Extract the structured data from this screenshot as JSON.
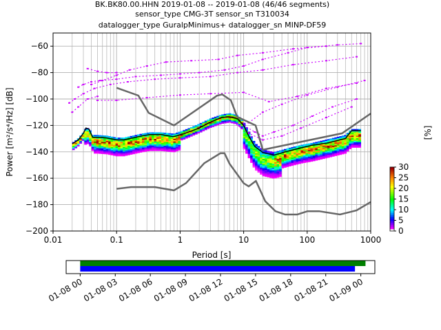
{
  "title_lines": [
    "BK.BK80.00.HHN   2019-01-08 -- 2019-01-08  (46/46 segments)",
    "sensor_type CMG-3T sensor_sn T310034",
    "datalogger_type GuralpMinimus+ datalogger_sn MINP-DF59"
  ],
  "chart_data": [
    {
      "type": "heatmap",
      "xlabel": "Period [s]",
      "ylabel": "Power [m²/s⁴/Hz] [dB]",
      "x_scale": "log",
      "xlim": [
        0.01,
        1000
      ],
      "ylim": [
        -200,
        -50
      ],
      "x_ticks": [
        0.01,
        0.1,
        1,
        10,
        100,
        1000
      ],
      "x_tick_labels": [
        "0.01",
        "0.1",
        "1",
        "10",
        "100",
        "1000"
      ],
      "y_ticks": [
        -200,
        -180,
        -160,
        -140,
        -120,
        -100,
        -80,
        -60
      ],
      "y_tick_labels": [
        "−200",
        "−180",
        "−160",
        "−140",
        "−120",
        "−100",
        "−80",
        "−60"
      ],
      "grid": true,
      "colorbar": {
        "label": "[%]",
        "range": [
          0,
          30
        ],
        "ticks": [
          0,
          5,
          10,
          15,
          20,
          25,
          30
        ],
        "tick_labels": [
          "0",
          "5",
          "10",
          "15",
          "20",
          "25",
          "30"
        ]
      },
      "noise_models": {
        "high": [
          [
            0.1,
            -91.5
          ],
          [
            0.22,
            -97.4
          ],
          [
            0.32,
            -110.5
          ],
          [
            0.8,
            -120
          ],
          [
            3.8,
            -97.5
          ],
          [
            4.6,
            -96.5
          ],
          [
            6.3,
            -101
          ],
          [
            7.9,
            -113.5
          ],
          [
            15.4,
            -120
          ],
          [
            20,
            -138.5
          ],
          [
            354.8,
            -126
          ],
          [
            1000,
            -111
          ]
        ],
        "low": [
          [
            0.1,
            -168
          ],
          [
            0.17,
            -166.7
          ],
          [
            0.4,
            -166.7
          ],
          [
            0.8,
            -169.2
          ],
          [
            1.24,
            -163.7
          ],
          [
            2.4,
            -148.6
          ],
          [
            4.3,
            -141.1
          ],
          [
            5,
            -141.1
          ],
          [
            6,
            -149
          ],
          [
            10,
            -163.8
          ],
          [
            12,
            -166.2
          ],
          [
            15.6,
            -162.1
          ],
          [
            21.9,
            -177.5
          ],
          [
            31.6,
            -185
          ],
          [
            45,
            -187.5
          ],
          [
            70,
            -187.5
          ],
          [
            101,
            -185
          ],
          [
            154,
            -185
          ],
          [
            328,
            -187.5
          ],
          [
            600,
            -184.4
          ],
          [
            1000,
            -178
          ]
        ]
      },
      "median_curve": [
        [
          0.02,
          -134
        ],
        [
          0.025,
          -131
        ],
        [
          0.03,
          -126
        ],
        [
          0.033,
          -122
        ],
        [
          0.037,
          -123
        ],
        [
          0.042,
          -129
        ],
        [
          0.05,
          -129
        ],
        [
          0.07,
          -129.5
        ],
        [
          0.1,
          -131
        ],
        [
          0.13,
          -131
        ],
        [
          0.18,
          -129.5
        ],
        [
          0.25,
          -128
        ],
        [
          0.33,
          -127
        ],
        [
          0.5,
          -127
        ],
        [
          0.8,
          -128.5
        ],
        [
          1.2,
          -126
        ],
        [
          2,
          -122
        ],
        [
          3,
          -117.5
        ],
        [
          4.5,
          -114
        ],
        [
          6,
          -113.5
        ],
        [
          8,
          -115
        ],
        [
          10,
          -120
        ],
        [
          12,
          -128
        ],
        [
          15,
          -136
        ],
        [
          20,
          -140.5
        ],
        [
          30,
          -142.5
        ],
        [
          50,
          -139.5
        ],
        [
          80,
          -137
        ],
        [
          120,
          -135
        ],
        [
          200,
          -133.5
        ],
        [
          400,
          -130
        ],
        [
          500,
          -124
        ],
        [
          700,
          -124
        ]
      ],
      "max_curve": [
        [
          0.02,
          -133
        ],
        [
          0.025,
          -129.5
        ],
        [
          0.03,
          -125
        ],
        [
          0.033,
          -121.5
        ],
        [
          0.037,
          -122
        ],
        [
          0.042,
          -127
        ],
        [
          0.05,
          -127
        ],
        [
          0.07,
          -127.5
        ],
        [
          0.1,
          -129
        ],
        [
          0.13,
          -129
        ],
        [
          0.18,
          -127.5
        ],
        [
          0.25,
          -126
        ],
        [
          0.33,
          -125
        ],
        [
          0.5,
          -125
        ],
        [
          0.8,
          -126
        ],
        [
          1.2,
          -123
        ],
        [
          2,
          -118.5
        ],
        [
          3,
          -114.5
        ],
        [
          4.5,
          -111.5
        ],
        [
          6,
          -110.5
        ],
        [
          8,
          -112
        ],
        [
          10,
          -117
        ],
        [
          12,
          -124
        ],
        [
          15,
          -133
        ],
        [
          20,
          -138
        ],
        [
          30,
          -140
        ],
        [
          50,
          -137
        ],
        [
          80,
          -134.5
        ],
        [
          120,
          -133
        ],
        [
          200,
          -130.5
        ],
        [
          400,
          -127
        ],
        [
          500,
          -122.5
        ],
        [
          700,
          -122.5
        ]
      ],
      "spurious_lines_magenta": [
        [
          [
            0.025,
            -91
          ],
          [
            0.03,
            -89
          ],
          [
            0.04,
            -87
          ],
          [
            0.055,
            -86
          ],
          [
            0.1,
            -85
          ],
          [
            0.2,
            -83
          ],
          [
            0.5,
            -82
          ],
          [
            1,
            -81
          ],
          [
            2,
            -80
          ],
          [
            5,
            -78
          ],
          [
            10,
            -75
          ],
          [
            20,
            -70
          ],
          [
            50,
            -65
          ],
          [
            100,
            -61
          ],
          [
            300,
            -59
          ],
          [
            700,
            -58
          ]
        ],
        [
          [
            0.04,
            -89
          ],
          [
            0.06,
            -86
          ],
          [
            0.1,
            -82
          ],
          [
            0.16,
            -78
          ],
          [
            0.3,
            -75
          ],
          [
            0.6,
            -72
          ],
          [
            1.5,
            -71
          ],
          [
            4,
            -70
          ],
          [
            8,
            -67
          ],
          [
            20,
            -65
          ],
          [
            60,
            -62
          ],
          [
            200,
            -60
          ]
        ],
        [
          [
            0.05,
            -101
          ],
          [
            0.1,
            -101
          ],
          [
            0.3,
            -99
          ],
          [
            1,
            -97
          ],
          [
            3,
            -96
          ],
          [
            10,
            -95
          ],
          [
            25,
            -102
          ],
          [
            70,
            -98
          ],
          [
            200,
            -92
          ],
          [
            600,
            -88
          ]
        ],
        [
          [
            0.018,
            -103
          ],
          [
            0.022,
            -100
          ],
          [
            0.03,
            -96
          ],
          [
            0.045,
            -92
          ],
          [
            0.08,
            -89
          ],
          [
            0.15,
            -87
          ],
          [
            0.4,
            -85
          ],
          [
            1,
            -84
          ],
          [
            3,
            -83
          ],
          [
            8,
            -80
          ],
          [
            20,
            -78
          ],
          [
            60,
            -74
          ],
          [
            200,
            -71
          ],
          [
            600,
            -68
          ]
        ],
        [
          [
            0.02,
            -110
          ],
          [
            0.025,
            -106
          ],
          [
            0.035,
            -100
          ],
          [
            0.05,
            -98
          ]
        ],
        [
          [
            10,
            -120
          ],
          [
            15,
            -125
          ],
          [
            20,
            -128
          ],
          [
            30,
            -125
          ],
          [
            60,
            -120
          ],
          [
            120,
            -113
          ],
          [
            250,
            -106
          ],
          [
            600,
            -100
          ]
        ],
        [
          [
            7,
            -118
          ],
          [
            12,
            -126
          ],
          [
            20,
            -131
          ],
          [
            40,
            -128
          ],
          [
            80,
            -122
          ],
          [
            200,
            -114
          ],
          [
            500,
            -106
          ]
        ],
        [
          [
            12,
            -118
          ],
          [
            20,
            -110
          ],
          [
            40,
            -104
          ],
          [
            100,
            -97
          ],
          [
            300,
            -91
          ],
          [
            800,
            -86
          ]
        ],
        [
          [
            0.035,
            -77
          ],
          [
            0.05,
            -79
          ],
          [
            0.07,
            -80
          ],
          [
            0.1,
            -80
          ]
        ]
      ]
    },
    {
      "type": "timeline",
      "x_tick_labels": [
        "01-08 00",
        "01-08 03",
        "01-08 06",
        "01-08 09",
        "01-08 12",
        "01-08 15",
        "01-08 18",
        "01-08 21",
        "01-09 00"
      ],
      "xlim_hours": [
        -1.2,
        25.2
      ],
      "bars": [
        {
          "color": "#008000",
          "start_hours": 0,
          "end_hours": 24.4
        },
        {
          "color": "#0000ff",
          "start_hours": 0,
          "end_hours": 23.5
        }
      ]
    }
  ],
  "colors": {
    "median": "#000000",
    "noise_models": "#666666",
    "grid": "#b0b0b0",
    "spurious": "#cc00ff"
  }
}
